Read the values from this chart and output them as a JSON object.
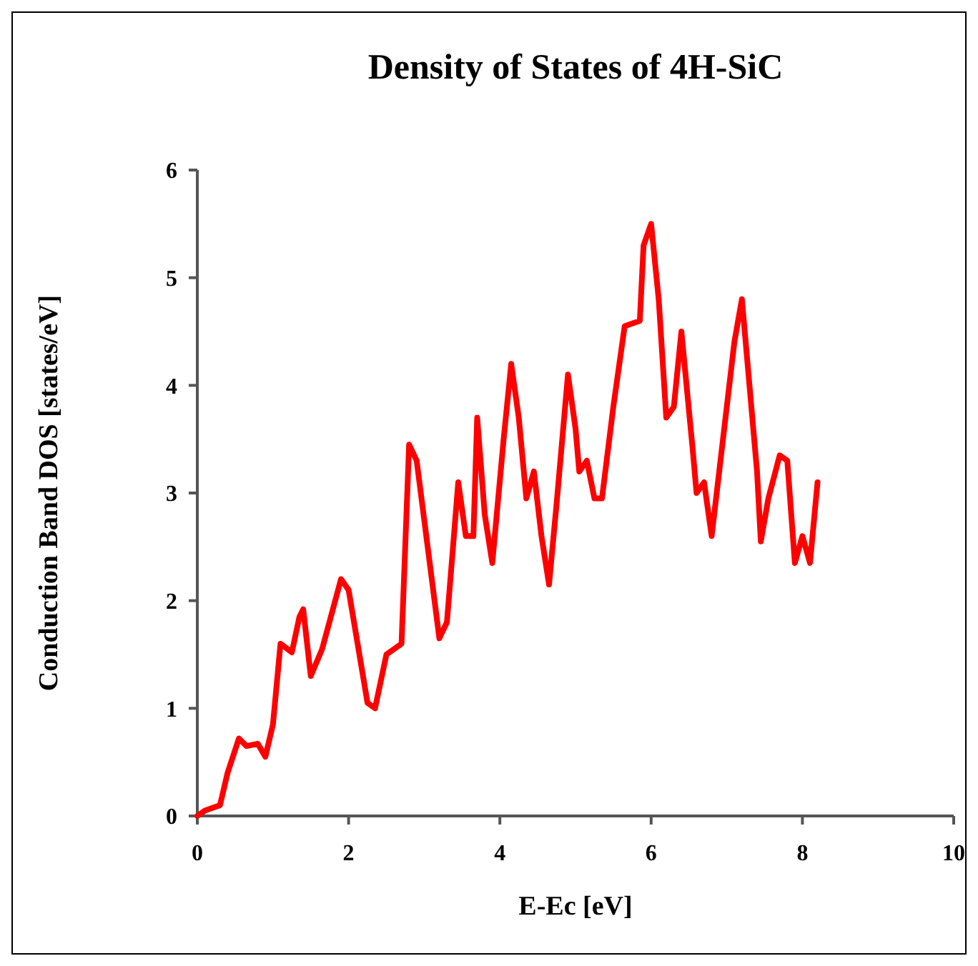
{
  "chart_data": {
    "type": "line",
    "title": "Density of States of 4H-SiC",
    "xlabel": "E-Ec [eV]",
    "ylabel": "Conduction Band DOS [states/eV]",
    "xlim": [
      0,
      10
    ],
    "xticks": [
      0,
      2,
      4,
      6,
      8,
      10
    ],
    "ylim": [
      0,
      6
    ],
    "yticks": [
      0,
      1,
      2,
      3,
      4,
      5,
      6
    ],
    "grid": false,
    "marker": "none",
    "line_style": "solid",
    "x": [
      0,
      0.1,
      0.3,
      0.4,
      0.55,
      0.65,
      0.8,
      0.9,
      1.0,
      1.1,
      1.25,
      1.35,
      1.4,
      1.5,
      1.65,
      1.9,
      2.0,
      2.25,
      2.35,
      2.5,
      2.7,
      2.8,
      2.9,
      3.2,
      3.3,
      3.45,
      3.55,
      3.65,
      3.7,
      3.8,
      3.9,
      4.05,
      4.15,
      4.25,
      4.35,
      4.45,
      4.55,
      4.65,
      4.75,
      4.9,
      5.0,
      5.05,
      5.15,
      5.25,
      5.35,
      5.5,
      5.65,
      5.85,
      5.9,
      6.0,
      6.1,
      6.2,
      6.3,
      6.4,
      6.55,
      6.6,
      6.7,
      6.8,
      6.95,
      7.1,
      7.2,
      7.3,
      7.4,
      7.45,
      7.55,
      7.7,
      7.8,
      7.9,
      8.0,
      8.1,
      8.2
    ],
    "series": [
      {
        "color": "#ff0000",
        "values": [
          0,
          0.05,
          0.1,
          0.4,
          0.72,
          0.65,
          0.67,
          0.55,
          0.85,
          1.6,
          1.52,
          1.85,
          1.92,
          1.3,
          1.55,
          2.2,
          2.1,
          1.05,
          1.0,
          1.5,
          1.6,
          3.45,
          3.3,
          1.65,
          1.8,
          3.1,
          2.6,
          2.6,
          3.7,
          2.8,
          2.35,
          3.5,
          4.2,
          3.7,
          2.95,
          3.2,
          2.6,
          2.15,
          2.9,
          4.1,
          3.6,
          3.2,
          3.3,
          2.95,
          2.95,
          3.8,
          4.55,
          4.6,
          5.3,
          5.5,
          4.8,
          3.7,
          3.8,
          4.5,
          3.4,
          3.0,
          3.1,
          2.6,
          3.5,
          4.4,
          4.8,
          4.0,
          3.2,
          2.55,
          2.95,
          3.35,
          3.3,
          2.35,
          2.6,
          2.35,
          3.1
        ]
      }
    ]
  }
}
